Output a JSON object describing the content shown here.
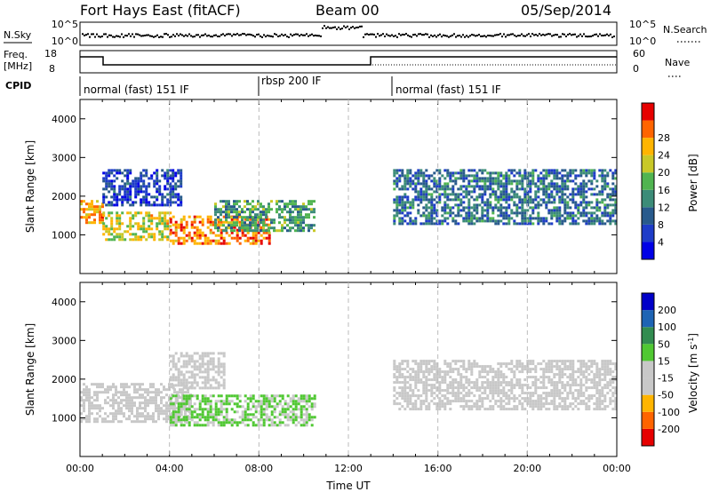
{
  "header": {
    "station": "Fort Hays East (fitACF)",
    "beam": "Beam 00",
    "date": "05/Sep/2014"
  },
  "top_panels": {
    "nsky_label": "N.Sky",
    "nsearch_label": "N.Search",
    "noise_ticks": [
      "10^5",
      "10^0"
    ],
    "freq_label": "Freq.",
    "freq_unit": "[MHz]",
    "freq_ticks": [
      "18",
      "8"
    ],
    "nave_label": "Nave",
    "nave_ticks": [
      "60",
      "0"
    ],
    "cpid_label": "CPID",
    "cpid_segments": [
      {
        "label": "normal (fast) 151 IF",
        "start_h": 0,
        "end_h": 8
      },
      {
        "label": "rbsp 200 IF",
        "start_h": 8,
        "end_h": 14
      },
      {
        "label": "normal (fast) 151 IF",
        "start_h": 14,
        "end_h": 24
      }
    ]
  },
  "colors": {
    "power_scale": [
      "#0000e6",
      "#1e3cc8",
      "#285a8c",
      "#3c8c78",
      "#50b450",
      "#c8c828",
      "#ffb400",
      "#ff6400",
      "#e60000"
    ],
    "velocity_scale": [
      "#e60000",
      "#ff6400",
      "#ffb400",
      "#c8c8c8",
      "#c8c8c8",
      "#50c832",
      "#328c50",
      "#1e64b4",
      "#0000c8"
    ]
  },
  "chart_data": [
    {
      "type": "heatmap",
      "name": "power",
      "ylabel": "Slant Range [km]",
      "ylim": [
        0,
        4500
      ],
      "yticks": [
        "1000",
        "2000",
        "3000",
        "4000"
      ],
      "colorbar_label": "Power [dB]",
      "colorbar_ticks": [
        "4",
        "8",
        "12",
        "16",
        "20",
        "24",
        "28"
      ],
      "clim": [
        0,
        32
      ],
      "echo_bands": [
        {
          "start_h": 0.0,
          "end_h": 1.0,
          "range_km": [
            1300,
            1900
          ],
          "power_db": 24
        },
        {
          "start_h": 1.0,
          "end_h": 4.0,
          "range_km": [
            900,
            1600
          ],
          "power_db": 20
        },
        {
          "start_h": 1.0,
          "end_h": 4.5,
          "range_km": [
            1800,
            2700
          ],
          "power_db": 6
        },
        {
          "start_h": 4.0,
          "end_h": 8.5,
          "range_km": [
            800,
            1500
          ],
          "power_db": 26
        },
        {
          "start_h": 6.0,
          "end_h": 10.5,
          "range_km": [
            1100,
            1900
          ],
          "power_db": 14
        },
        {
          "start_h": 14.0,
          "end_h": 24.0,
          "range_km": [
            1300,
            2700
          ],
          "power_db": 10
        }
      ]
    },
    {
      "type": "heatmap",
      "name": "velocity",
      "ylabel": "Slant Range [km]",
      "xlabel": "Time UT",
      "ylim": [
        0,
        4500
      ],
      "yticks": [
        "1000",
        "2000",
        "3000",
        "4000"
      ],
      "xticks": [
        "00:00",
        "04:00",
        "08:00",
        "12:00",
        "16:00",
        "20:00",
        "00:00"
      ],
      "xlim_hours": [
        0,
        24
      ],
      "colorbar_label": "Velocity [m s",
      "colorbar_label_sup": "-1",
      "colorbar_label_end": "]",
      "colorbar_ticks": [
        "200",
        "100",
        "50",
        "15",
        "-15",
        "-50",
        "-100",
        "-200"
      ],
      "clim": [
        -250,
        250
      ],
      "echo_bands": [
        {
          "start_h": 0.0,
          "end_h": 5.0,
          "range_km": [
            900,
            1900
          ],
          "velocity": 0
        },
        {
          "start_h": 4.0,
          "end_h": 6.5,
          "range_km": [
            1800,
            2700
          ],
          "velocity": 0
        },
        {
          "start_h": 4.0,
          "end_h": 10.5,
          "range_km": [
            800,
            1600
          ],
          "velocity": 30
        },
        {
          "start_h": 14.0,
          "end_h": 24.0,
          "range_km": [
            1200,
            2500
          ],
          "velocity": 0
        }
      ]
    }
  ]
}
